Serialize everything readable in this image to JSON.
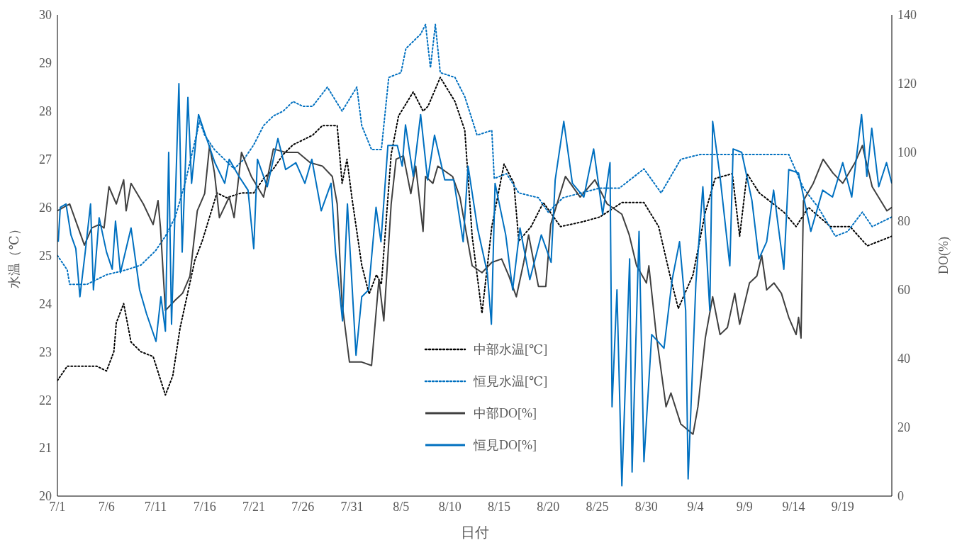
{
  "chart_data": {
    "type": "line",
    "xlabel": "日付",
    "ylabel": "水温（℃）",
    "y2label": "DO(%)",
    "xlim": [
      "--07-01",
      "--09-24"
    ],
    "xticks": [
      {
        "value": "--07-01",
        "label": "7/1"
      },
      {
        "value": "--07-06",
        "label": "7/6"
      },
      {
        "value": "--07-11",
        "label": "7/11"
      },
      {
        "value": "--07-16",
        "label": "7/16"
      },
      {
        "value": "--07-21",
        "label": "7/21"
      },
      {
        "value": "--07-26",
        "label": "7/26"
      },
      {
        "value": "--07-31",
        "label": "7/31"
      },
      {
        "value": "--08-05",
        "label": "8/5"
      },
      {
        "value": "--08-10",
        "label": "8/10"
      },
      {
        "value": "--08-15",
        "label": "8/15"
      },
      {
        "value": "--08-20",
        "label": "8/20"
      },
      {
        "value": "--08-25",
        "label": "8/25"
      },
      {
        "value": "--08-30",
        "label": "8/30"
      },
      {
        "value": "--09-04",
        "label": "9/4"
      },
      {
        "value": "--09-09",
        "label": "9/9"
      },
      {
        "value": "--09-14",
        "label": "9/14"
      },
      {
        "value": "--09-19",
        "label": "9/19"
      }
    ],
    "ylim": [
      20,
      30
    ],
    "yticks": [
      20,
      21,
      22,
      23,
      24,
      25,
      26,
      27,
      28,
      29,
      30
    ],
    "y2lim": [
      0,
      140
    ],
    "y2ticks": [
      0,
      20,
      40,
      60,
      80,
      100,
      120,
      140
    ],
    "legend": "center",
    "marker": "none",
    "series": [
      {
        "name": "中部水温[℃]",
        "color": "#000000",
        "line_style": "dotted",
        "x": [
          "--07-01T00:00",
          "--07-02T00:00",
          "--07-03T00:00",
          "--07-04T00:00",
          "--07-05T00:00",
          "--07-06T00:00",
          "--07-06T18:00",
          "--07-07T00:00",
          "--07-07T18:00",
          "--07-08T12:00",
          "--07-09T12:00",
          "--07-10T18:00",
          "--07-12T00:00",
          "--07-12T18:00",
          "--07-13T12:00",
          "--07-14T06:00",
          "--07-15T00:00",
          "--07-15T18:00",
          "--07-16T12:00",
          "--07-17T06:00",
          "--07-18T06:00",
          "--07-19T18:00",
          "--07-21T00:00",
          "--07-22T00:00",
          "--07-23T00:00",
          "--07-24T00:00",
          "--07-25T00:00",
          "--07-26T00:00",
          "--07-27T00:00",
          "--07-28T00:00",
          "--07-29T00:00",
          "--07-29T12:00",
          "--07-30T00:00",
          "--07-30T12:00",
          "--07-31T00:00",
          "--07-31T12:00",
          "--08-01T00:00",
          "--08-01T18:00",
          "--08-02T12:00",
          "--08-03T00:00",
          "--08-04T00:00",
          "--08-04T18:00",
          "--08-06T06:00",
          "--08-07T06:00",
          "--08-07T18:00",
          "--08-09T00:00",
          "--08-10T12:00",
          "--08-11T12:00",
          "--08-12T06:00",
          "--08-13T06:00",
          "--08-14T06:00",
          "--08-15T12:00",
          "--08-16T12:00",
          "--08-17T00:00",
          "--08-18T06:00",
          "--08-19T12:00",
          "--08-21T06:00",
          "--08-23T12:00",
          "--08-25T06:00",
          "--08-27T12:00",
          "--08-29T18:00",
          "--08-31T06:00",
          "--09-01T12:00",
          "--09-02T06:00",
          "--09-03T18:00",
          "--09-05T00:00",
          "--09-06T00:00",
          "--09-07T18:00",
          "--09-08T12:00",
          "--09-09T06:00",
          "--09-10T12:00",
          "--09-13T00:00",
          "--09-14T06:00",
          "--09-15T12:00",
          "--09-17T18:00",
          "--09-19T18:00",
          "--09-21T12:00",
          "--09-24T00:00"
        ],
        "values": [
          22.4,
          22.7,
          22.7,
          22.7,
          22.7,
          22.6,
          23.0,
          23.6,
          24.0,
          23.2,
          23.0,
          22.9,
          22.1,
          22.5,
          23.5,
          24.2,
          24.9,
          25.3,
          25.8,
          26.3,
          26.2,
          26.3,
          26.3,
          26.6,
          26.8,
          27.1,
          27.3,
          27.4,
          27.5,
          27.7,
          27.7,
          27.7,
          26.5,
          27.0,
          26.2,
          25.5,
          24.8,
          24.2,
          24.6,
          24.4,
          27.1,
          27.9,
          28.4,
          28.0,
          28.1,
          28.7,
          28.2,
          27.6,
          25.4,
          23.8,
          25.6,
          26.9,
          26.5,
          25.3,
          25.6,
          26.1,
          25.6,
          25.7,
          25.8,
          26.1,
          26.1,
          25.6,
          24.5,
          23.9,
          24.6,
          25.9,
          26.6,
          26.7,
          25.4,
          26.7,
          26.3,
          25.9,
          25.6,
          26.0,
          25.6,
          25.6,
          25.2,
          25.4
        ]
      },
      {
        "name": "恒見水温[℃]",
        "color": "#0070c0",
        "line_style": "dotted",
        "x": [
          "--07-01T00:00",
          "--07-02T00:00",
          "--07-02T06:00",
          "--07-03T00:00",
          "--07-04T00:00",
          "--07-05T00:00",
          "--07-06T00:00",
          "--07-08T00:00",
          "--07-09T12:00",
          "--07-11T00:00",
          "--07-12T00:00",
          "--07-13T00:00",
          "--07-14T00:00",
          "--07-15T12:00",
          "--07-16T00:00",
          "--07-17T00:00",
          "--07-18T00:00",
          "--07-19T00:00",
          "--07-20T00:00",
          "--07-21T00:00",
          "--07-22T00:00",
          "--07-23T00:00",
          "--07-24T00:00",
          "--07-25T00:00",
          "--07-26T00:00",
          "--07-27T00:00",
          "--07-28T12:00",
          "--07-30T00:00",
          "--07-31T12:00",
          "--08-01T00:00",
          "--08-02T00:00",
          "--08-03T00:00",
          "--08-03T18:00",
          "--08-05T00:00",
          "--08-05T12:00",
          "--08-07T00:00",
          "--08-07T12:00",
          "--08-08T00:00",
          "--08-08T12:00",
          "--08-09T00:00",
          "--08-10T12:00",
          "--08-11T12:00",
          "--08-12T18:00",
          "--08-14T06:00",
          "--08-14T12:00",
          "--08-15T18:00",
          "--08-17T00:00",
          "--08-19T00:00",
          "--08-20T00:00",
          "--08-21T12:00",
          "--08-25T06:00",
          "--08-27T06:00",
          "--08-29T18:00",
          "--08-31T12:00",
          "--09-02T12:00",
          "--09-04T12:00",
          "--09-06T18:00",
          "--09-11T00:00",
          "--09-13T12:00",
          "--09-15T00:00",
          "--09-16T12:00",
          "--09-18T06:00",
          "--09-19T12:00",
          "--09-21T00:00",
          "--09-22T00:00",
          "--09-24T00:00"
        ],
        "values": [
          25.0,
          24.7,
          24.4,
          24.4,
          24.4,
          24.5,
          24.6,
          24.7,
          24.8,
          25.1,
          25.4,
          25.8,
          26.5,
          27.8,
          27.5,
          27.2,
          27.0,
          26.8,
          27.0,
          27.3,
          27.7,
          27.9,
          28.0,
          28.2,
          28.1,
          28.1,
          28.5,
          28.0,
          28.5,
          27.7,
          27.2,
          27.2,
          28.7,
          28.8,
          29.3,
          29.6,
          29.8,
          28.9,
          29.8,
          28.8,
          28.7,
          28.3,
          27.5,
          27.6,
          26.6,
          26.7,
          26.3,
          26.2,
          25.9,
          26.2,
          26.4,
          26.4,
          26.8,
          26.3,
          27.0,
          27.1,
          27.1,
          27.1,
          27.1,
          26.4,
          26.0,
          25.4,
          25.5,
          25.9,
          25.6,
          25.8
        ]
      },
      {
        "name": "中部DO[%]",
        "color": "#404040",
        "line_style": "solid",
        "axis": "y2",
        "x": [
          "--07-01T00:00",
          "--07-02T06:00",
          "--07-03T00:00",
          "--07-03T18:00",
          "--07-04T12:00",
          "--07-05T06:00",
          "--07-05T18:00",
          "--07-06T06:00",
          "--07-07T00:00",
          "--07-07T18:00",
          "--07-08T00:00",
          "--07-08T12:00",
          "--07-09T18:00",
          "--07-10T18:00",
          "--07-11T06:00",
          "--07-11T12:00",
          "--07-12T00:00",
          "--07-13T00:00",
          "--07-13T18:00",
          "--07-14T12:00",
          "--07-15T06:00",
          "--07-16T00:00",
          "--07-16T12:00",
          "--07-17T00:00",
          "--07-17T12:00",
          "--07-18T12:00",
          "--07-19T00:00",
          "--07-19T18:00",
          "--07-20T18:00",
          "--07-22T00:00",
          "--07-23T00:00",
          "--07-24T06:00",
          "--07-25T12:00",
          "--07-26T18:00",
          "--07-28T00:00",
          "--07-29T00:00",
          "--07-29T12:00",
          "--07-30T00:00",
          "--07-30T18:00",
          "--08-01T00:00",
          "--08-02T00:00",
          "--08-02T18:00",
          "--08-03T06:00",
          "--08-04T00:00",
          "--08-04T12:00",
          "--08-05T06:00",
          "--08-06T00:00",
          "--08-06T12:00",
          "--08-07T06:00",
          "--08-07T12:00",
          "--08-08T06:00",
          "--08-08T18:00",
          "--08-10T06:00",
          "--08-11T00:00",
          "--08-12T06:00",
          "--08-13T06:00",
          "--08-14T06:00",
          "--08-15T06:00",
          "--08-16T00:00",
          "--08-16T18:00",
          "--08-17T12:00",
          "--08-18T00:00",
          "--08-19T00:00",
          "--08-19T18:00",
          "--08-20T06:00",
          "--08-21T18:00",
          "--08-23T06:00",
          "--08-24T18:00",
          "--08-26T00:00",
          "--08-27T12:00",
          "--08-28T06:00",
          "--08-29T00:00",
          "--08-30T00:00",
          "--08-30T06:00",
          "--08-31T00:00",
          "--09-01T00:00",
          "--09-01T12:00",
          "--09-02T12:00",
          "--09-03T18:00",
          "--09-04T06:00",
          "--09-05T00:00",
          "--09-05T18:00",
          "--09-06T12:00",
          "--09-07T06:00",
          "--09-08T00:00",
          "--09-08T12:00",
          "--09-09T12:00",
          "--09-10T06:00",
          "--09-10T18:00",
          "--09-11T06:00",
          "--09-12T00:00",
          "--09-12T18:00",
          "--09-13T12:00",
          "--09-14T06:00",
          "--09-14T12:00",
          "--09-14T18:00",
          "--09-15T00:00",
          "--09-16T00:00",
          "--09-17T00:00",
          "--09-18T00:00",
          "--09-19T00:00",
          "--09-20T06:00",
          "--09-21T00:00",
          "--09-22T00:00",
          "--09-23T12:00",
          "--09-24T00:00"
        ],
        "values": [
          83,
          85,
          79,
          73,
          78,
          79,
          78,
          90,
          85,
          92,
          83,
          91,
          85,
          79,
          86,
          78,
          54,
          57,
          59,
          64,
          83,
          88,
          102,
          94,
          81,
          87,
          81,
          100,
          93,
          87,
          101,
          100,
          100,
          97,
          96,
          93,
          85,
          56,
          39,
          39,
          38,
          63,
          51,
          85,
          98,
          99,
          88,
          96,
          77,
          93,
          91,
          96,
          93,
          87,
          67,
          65,
          68,
          69,
          64,
          58,
          68,
          76,
          61,
          61,
          79,
          93,
          87,
          92,
          85,
          82,
          76,
          67,
          62,
          67,
          47,
          26,
          30,
          21,
          18,
          26,
          46,
          58,
          47,
          49,
          59,
          50,
          62,
          64,
          70,
          60,
          62,
          59,
          52,
          47,
          52,
          46,
          86,
          91,
          98,
          94,
          91,
          97,
          102,
          90,
          83,
          84
        ]
      },
      {
        "name": "恒見DO[%]",
        "color": "#0070c0",
        "line_style": "solid",
        "axis": "y2",
        "x": [
          "--07-01T02:00",
          "--07-01T07:00",
          "--07-01T21:00",
          "--07-02T09:00",
          "--07-02T21:00",
          "--07-03T07:00",
          "--07-03T20:00",
          "--07-04T09:00",
          "--07-04T16:00",
          "--07-05T06:00",
          "--07-06T00:00",
          "--07-06T14:00",
          "--07-06T22:00",
          "--07-07T10:00",
          "--07-08T12:00",
          "--07-09T09:00",
          "--07-10T02:00",
          "--07-11T01:00",
          "--07-11T13:00",
          "--07-12T00:00",
          "--07-12T08:00",
          "--07-12T15:00",
          "--07-13T09:00",
          "--07-13T17:00",
          "--07-14T07:00",
          "--07-14T16:00",
          "--07-15T09:00",
          "--07-16T02:00",
          "--07-17T01:00",
          "--07-18T01:00",
          "--07-18T12:00",
          "--07-19T12:00",
          "--07-20T10:00",
          "--07-21T00:00",
          "--07-21T09:00",
          "--07-22T09:00",
          "--07-23T11:00",
          "--07-24T06:00",
          "--07-25T07:00",
          "--07-26T05:00",
          "--07-26T22:00",
          "--07-27T21:00",
          "--07-28T21:00",
          "--07-29T08:00",
          "--07-30T01:00",
          "--07-30T13:00",
          "--07-31T10:00",
          "--08-01T00:00",
          "--08-01T17:00",
          "--08-02T11:00",
          "--08-02T23:00",
          "--08-03T16:00",
          "--08-04T15:00",
          "--08-05T03:00",
          "--08-05T11:00",
          "--08-06T06:00",
          "--08-07T00:00",
          "--08-07T17:00",
          "--08-08T10:00",
          "--08-09T11:00",
          "--08-10T09:00",
          "--08-11T08:00",
          "--08-11T20:00",
          "--08-12T19:00",
          "--08-13T19:00",
          "--08-14T05:00",
          "--08-14T14:00",
          "--08-15T16:00",
          "--08-16T09:00",
          "--08-17T03:00",
          "--08-18T03:00",
          "--08-19T07:00",
          "--08-20T07:00",
          "--08-20T17:00",
          "--08-21T14:00",
          "--08-22T11:00",
          "--08-23T15:00",
          "--08-24T15:00",
          "--08-25T13:00",
          "--08-26T07:00",
          "--08-26T12:00",
          "--08-27T00:00",
          "--08-27T12:00",
          "--08-28T07:00",
          "--08-28T13:00",
          "--08-29T06:00",
          "--08-29T18:00",
          "--08-30T13:00",
          "--08-31T19:00",
          "--09-01T15:00",
          "--09-02T09:00",
          "--09-03T00:00",
          "--09-03T06:00",
          "--09-04T01:00",
          "--09-04T18:00",
          "--09-05T11:00",
          "--09-05T18:00",
          "--09-06T12:00",
          "--09-07T12:00",
          "--09-07T20:00",
          "--09-08T17:00",
          "--09-09T18:00",
          "--09-10T11:00",
          "--09-11T06:00",
          "--09-11T23:00",
          "--09-13T00:00",
          "--09-13T12:00",
          "--09-14T12:00",
          "--09-15T18:00",
          "--09-16T23:00",
          "--09-17T23:00",
          "--09-19T00:00",
          "--09-19T22:00",
          "--09-20T22:00",
          "--09-21T11:00",
          "--09-21T23:00",
          "--09-22T16:00",
          "--09-23T11:00",
          "--09-24T00:00"
        ],
        "values": [
          74,
          84,
          85,
          76,
          72,
          58,
          71,
          85,
          60,
          81,
          71,
          66,
          80,
          65,
          78,
          60,
          53,
          45,
          58,
          48,
          100,
          50,
          120,
          71,
          116,
          91,
          111,
          105,
          97,
          91,
          98,
          93,
          89,
          72,
          98,
          90,
          104,
          95,
          97,
          91,
          98,
          83,
          91,
          71,
          51,
          85,
          41,
          58,
          60,
          84,
          74,
          102,
          102,
          96,
          108,
          93,
          111,
          92,
          105,
          92,
          92,
          74,
          96,
          78,
          65,
          50,
          91,
          76,
          60,
          78,
          63,
          76,
          68,
          92,
          109,
          91,
          87,
          101,
          82,
          97,
          26,
          60,
          3,
          69,
          7,
          77,
          10,
          47,
          43,
          63,
          74,
          54,
          5,
          62,
          90,
          54,
          109,
          93,
          67,
          101,
          100,
          86,
          69,
          74,
          89,
          66,
          95,
          94,
          77,
          89,
          87,
          97,
          87,
          111,
          93,
          107,
          90,
          97,
          91
        ]
      }
    ]
  }
}
